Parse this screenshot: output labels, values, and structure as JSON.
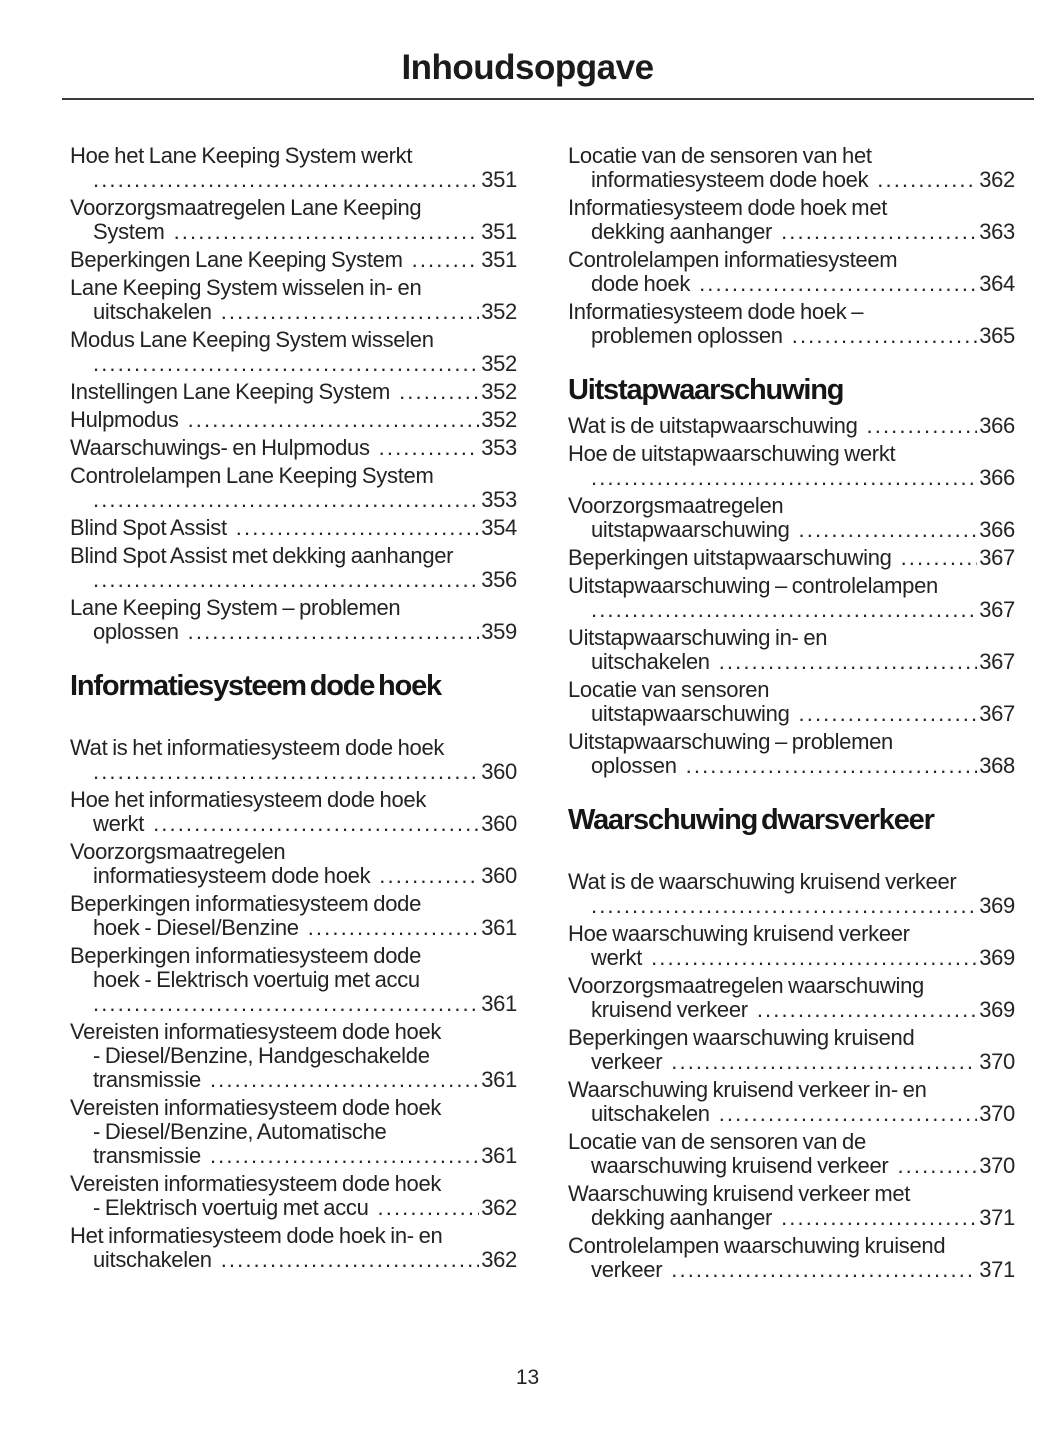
{
  "header": {
    "title": "Inhoudsopgave"
  },
  "footer": {
    "page_number": "13"
  },
  "toc": {
    "columns": [
      {
        "blocks": [
          {
            "type": "entries",
            "items": [
              {
                "pre": [
                  "Hoe het Lane Keeping System werkt"
                ],
                "last": "",
                "page": "351"
              },
              {
                "pre": [
                  "Voorzorgsmaatregelen Lane Keeping"
                ],
                "last": "System",
                "page": "351"
              },
              {
                "pre": [],
                "last": "Beperkingen Lane Keeping System",
                "page": "351"
              },
              {
                "pre": [
                  "Lane Keeping System wisselen in- en"
                ],
                "last": "uitschakelen",
                "page": "352"
              },
              {
                "pre": [
                  "Modus Lane Keeping System wisselen"
                ],
                "last": "",
                "page": "352"
              },
              {
                "pre": [],
                "last": "Instellingen Lane Keeping System",
                "page": "352"
              },
              {
                "pre": [],
                "last": "Hulpmodus",
                "page": "352"
              },
              {
                "pre": [],
                "last": "Waarschuwings- en Hulpmodus",
                "page": "353"
              },
              {
                "pre": [
                  "Controlelampen Lane Keeping System"
                ],
                "last": "",
                "page": "353"
              },
              {
                "pre": [],
                "last": "Blind Spot Assist",
                "page": "354"
              },
              {
                "pre": [
                  "Blind Spot Assist met dekking aanhanger"
                ],
                "last": "",
                "page": "356"
              },
              {
                "pre": [
                  "Lane Keeping System – problemen"
                ],
                "last": "oplossen",
                "page": "359"
              }
            ]
          },
          {
            "type": "heading",
            "text": "Informatiesysteem dode hoek",
            "spacing": "normal"
          },
          {
            "type": "entries",
            "items": [
              {
                "pre": [
                  "Wat is het informatiesysteem dode hoek"
                ],
                "last": "",
                "page": "360"
              },
              {
                "pre": [
                  "Hoe het informatiesysteem dode hoek"
                ],
                "last": "werkt",
                "page": "360"
              },
              {
                "pre": [
                  "Voorzorgsmaatregelen"
                ],
                "last": "informatiesysteem dode hoek",
                "page": "360"
              },
              {
                "pre": [
                  "Beperkingen informatiesysteem dode"
                ],
                "last": "hoek - Diesel/Benzine",
                "page": "361"
              },
              {
                "pre": [
                  "Beperkingen informatiesysteem dode",
                  "hoek - Elektrisch voertuig met accu"
                ],
                "last": "",
                "page": "361"
              },
              {
                "pre": [
                  "Vereisten informatiesysteem dode hoek",
                  "- Diesel/Benzine, Handgeschakelde"
                ],
                "last": "transmissie",
                "page": "361"
              },
              {
                "pre": [
                  "Vereisten informatiesysteem dode hoek",
                  "- Diesel/Benzine, Automatische"
                ],
                "last": "transmissie",
                "page": "361"
              },
              {
                "pre": [
                  "Vereisten informatiesysteem dode hoek"
                ],
                "last": "- Elektrisch voertuig met accu",
                "page": "362"
              },
              {
                "pre": [
                  "Het informatiesysteem dode hoek in- en"
                ],
                "last": "uitschakelen",
                "page": "362"
              }
            ]
          }
        ]
      },
      {
        "blocks": [
          {
            "type": "entries",
            "items": [
              {
                "pre": [
                  "Locatie van de sensoren van het"
                ],
                "last": "informatiesysteem dode hoek",
                "page": "362"
              },
              {
                "pre": [
                  "Informatiesysteem dode hoek met"
                ],
                "last": "dekking aanhanger",
                "page": "363"
              },
              {
                "pre": [
                  "Controlelampen informatiesysteem"
                ],
                "last": "dode hoek",
                "page": "364"
              },
              {
                "pre": [
                  "Informatiesysteem dode hoek –"
                ],
                "last": "problemen oplossen",
                "page": "365"
              }
            ]
          },
          {
            "type": "heading",
            "text": "Uitstapwaarschuwing",
            "spacing": "tight"
          },
          {
            "type": "entries",
            "items": [
              {
                "pre": [],
                "last": "Wat is de uitstapwaarschuwing",
                "page": "366"
              },
              {
                "pre": [
                  "Hoe de uitstapwaarschuwing werkt"
                ],
                "last": "",
                "page": "366"
              },
              {
                "pre": [
                  "Voorzorgsmaatregelen"
                ],
                "last": "uitstapwaarschuwing",
                "page": "366"
              },
              {
                "pre": [],
                "last": "Beperkingen uitstapwaarschuwing",
                "page": "367"
              },
              {
                "pre": [
                  "Uitstapwaarschuwing – controlelampen"
                ],
                "last": "",
                "page": "367"
              },
              {
                "pre": [
                  "Uitstapwaarschuwing in- en"
                ],
                "last": "uitschakelen",
                "page": "367"
              },
              {
                "pre": [
                  "Locatie van sensoren"
                ],
                "last": "uitstapwaarschuwing",
                "page": "367"
              },
              {
                "pre": [
                  "Uitstapwaarschuwing – problemen"
                ],
                "last": "oplossen",
                "page": "368"
              }
            ]
          },
          {
            "type": "heading",
            "text": "Waarschuwing dwarsverkeer",
            "spacing": "normal"
          },
          {
            "type": "entries",
            "items": [
              {
                "pre": [
                  "Wat is de waarschuwing kruisend verkeer"
                ],
                "last": "",
                "page": "369"
              },
              {
                "pre": [
                  "Hoe waarschuwing kruisend verkeer"
                ],
                "last": "werkt",
                "page": "369"
              },
              {
                "pre": [
                  "Voorzorgsmaatregelen waarschuwing"
                ],
                "last": "kruisend verkeer",
                "page": "369"
              },
              {
                "pre": [
                  "Beperkingen waarschuwing kruisend"
                ],
                "last": "verkeer",
                "page": "370"
              },
              {
                "pre": [
                  "Waarschuwing kruisend verkeer in- en"
                ],
                "last": "uitschakelen",
                "page": "370"
              },
              {
                "pre": [
                  "Locatie van de sensoren van de"
                ],
                "last": "waarschuwing kruisend verkeer",
                "page": "370"
              },
              {
                "pre": [
                  "Waarschuwing kruisend verkeer met"
                ],
                "last": "dekking aanhanger",
                "page": "371"
              },
              {
                "pre": [
                  "Controlelampen waarschuwing kruisend"
                ],
                "last": "verkeer",
                "page": "371"
              }
            ]
          }
        ]
      }
    ]
  }
}
